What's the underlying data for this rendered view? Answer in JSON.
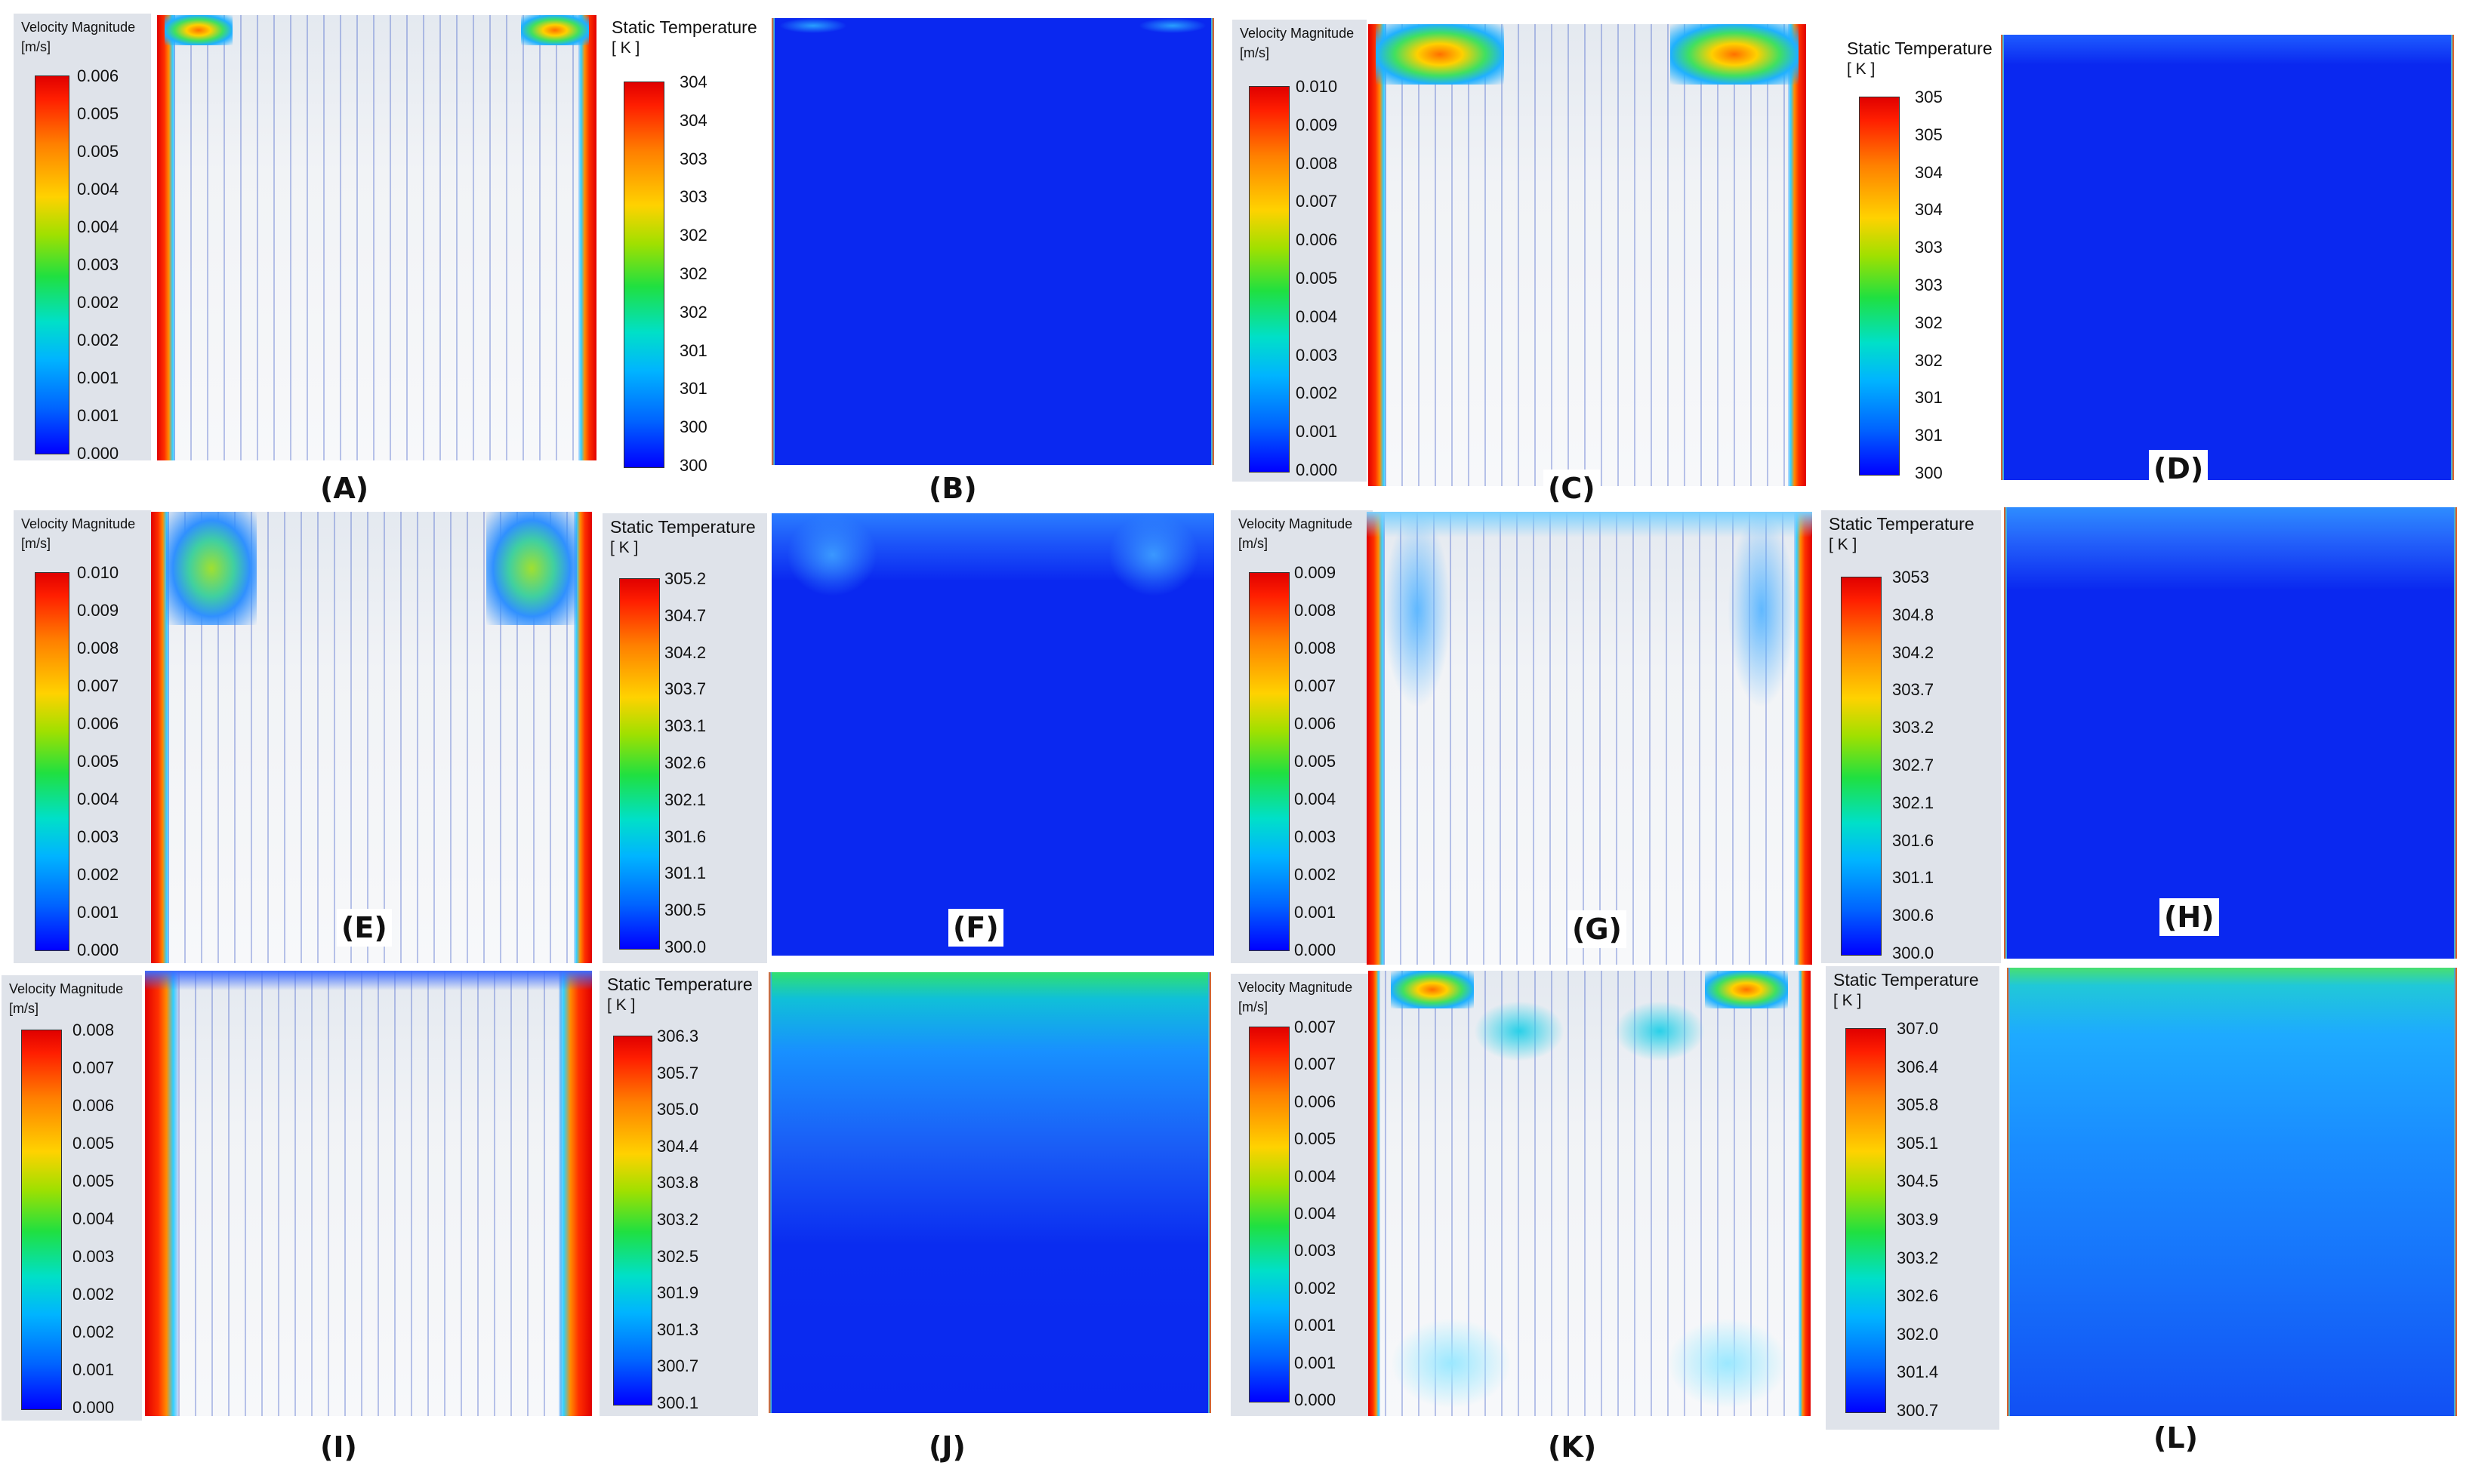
{
  "panels": [
    {
      "label": "(A)",
      "title": "Velocity Magnitude",
      "unit": "[m/s]",
      "ticks": [
        "0.006",
        "0.005",
        "0.005",
        "0.004",
        "0.004",
        "0.003",
        "0.002",
        "0.002",
        "0.001",
        "0.001",
        "0.000"
      ]
    },
    {
      "label": "(B)",
      "title": "Static Temperature",
      "unit": "[ K ]",
      "ticks": [
        "304",
        "304",
        "303",
        "303",
        "302",
        "302",
        "302",
        "301",
        "301",
        "300",
        "300"
      ]
    },
    {
      "label": "(C)",
      "title": "Velocity Magnitude",
      "unit": "[m/s]",
      "ticks": [
        "0.010",
        "0.009",
        "0.008",
        "0.007",
        "0.006",
        "0.005",
        "0.004",
        "0.003",
        "0.002",
        "0.001",
        "0.000"
      ]
    },
    {
      "label": "(D)",
      "title": "Static Temperature",
      "unit": "[ K ]",
      "ticks": [
        "305",
        "305",
        "304",
        "304",
        "303",
        "303",
        "302",
        "302",
        "301",
        "301",
        "300"
      ]
    },
    {
      "label": "(E)",
      "title": "Velocity Magnitude",
      "unit": "[m/s]",
      "ticks": [
        "0.010",
        "0.009",
        "0.008",
        "0.007",
        "0.006",
        "0.005",
        "0.004",
        "0.003",
        "0.002",
        "0.001",
        "0.000"
      ]
    },
    {
      "label": "(F)",
      "title": "Static Temperature",
      "unit": "[ K ]",
      "ticks": [
        "305.2",
        "304.7",
        "304.2",
        "303.7",
        "303.1",
        "302.6",
        "302.1",
        "301.6",
        "301.1",
        "300.5",
        "300.0"
      ]
    },
    {
      "label": "(G)",
      "title": "Velocity Magnitude",
      "unit": "[m/s]",
      "ticks": [
        "0.009",
        "0.008",
        "0.008",
        "0.007",
        "0.006",
        "0.005",
        "0.004",
        "0.003",
        "0.002",
        "0.001",
        "0.000"
      ]
    },
    {
      "label": "(H)",
      "title": "Static Temperature",
      "unit": "[ K ]",
      "ticks": [
        "3053",
        "304.8",
        "304.2",
        "303.7",
        "303.2",
        "302.7",
        "302.1",
        "301.6",
        "301.1",
        "300.6",
        "300.0"
      ]
    },
    {
      "label": "(I)",
      "title": "Velocity Magnitude",
      "unit": "[m/s]",
      "ticks": [
        "0.008",
        "0.007",
        "0.006",
        "0.005",
        "0.005",
        "0.004",
        "0.003",
        "0.002",
        "0.002",
        "0.001",
        "0.000"
      ]
    },
    {
      "label": "(J)",
      "title": "Static Temperature",
      "unit": "[ K ]",
      "ticks": [
        "306.3",
        "305.7",
        "305.0",
        "304.4",
        "303.8",
        "303.2",
        "302.5",
        "301.9",
        "301.3",
        "300.7",
        "300.1"
      ]
    },
    {
      "label": "(K)",
      "title": "Velocity Magnitude",
      "unit": "[m/s]",
      "ticks": [
        "0.007",
        "0.007",
        "0.006",
        "0.005",
        "0.004",
        "0.004",
        "0.003",
        "0.002",
        "0.001",
        "0.001",
        "0.000"
      ]
    },
    {
      "label": "(L)",
      "title": "Static Temperature",
      "unit": "[ K ]",
      "ticks": [
        "307.0",
        "306.4",
        "305.8",
        "305.1",
        "304.5",
        "303.9",
        "303.2",
        "302.6",
        "302.0",
        "301.4",
        "300.7"
      ]
    }
  ]
}
